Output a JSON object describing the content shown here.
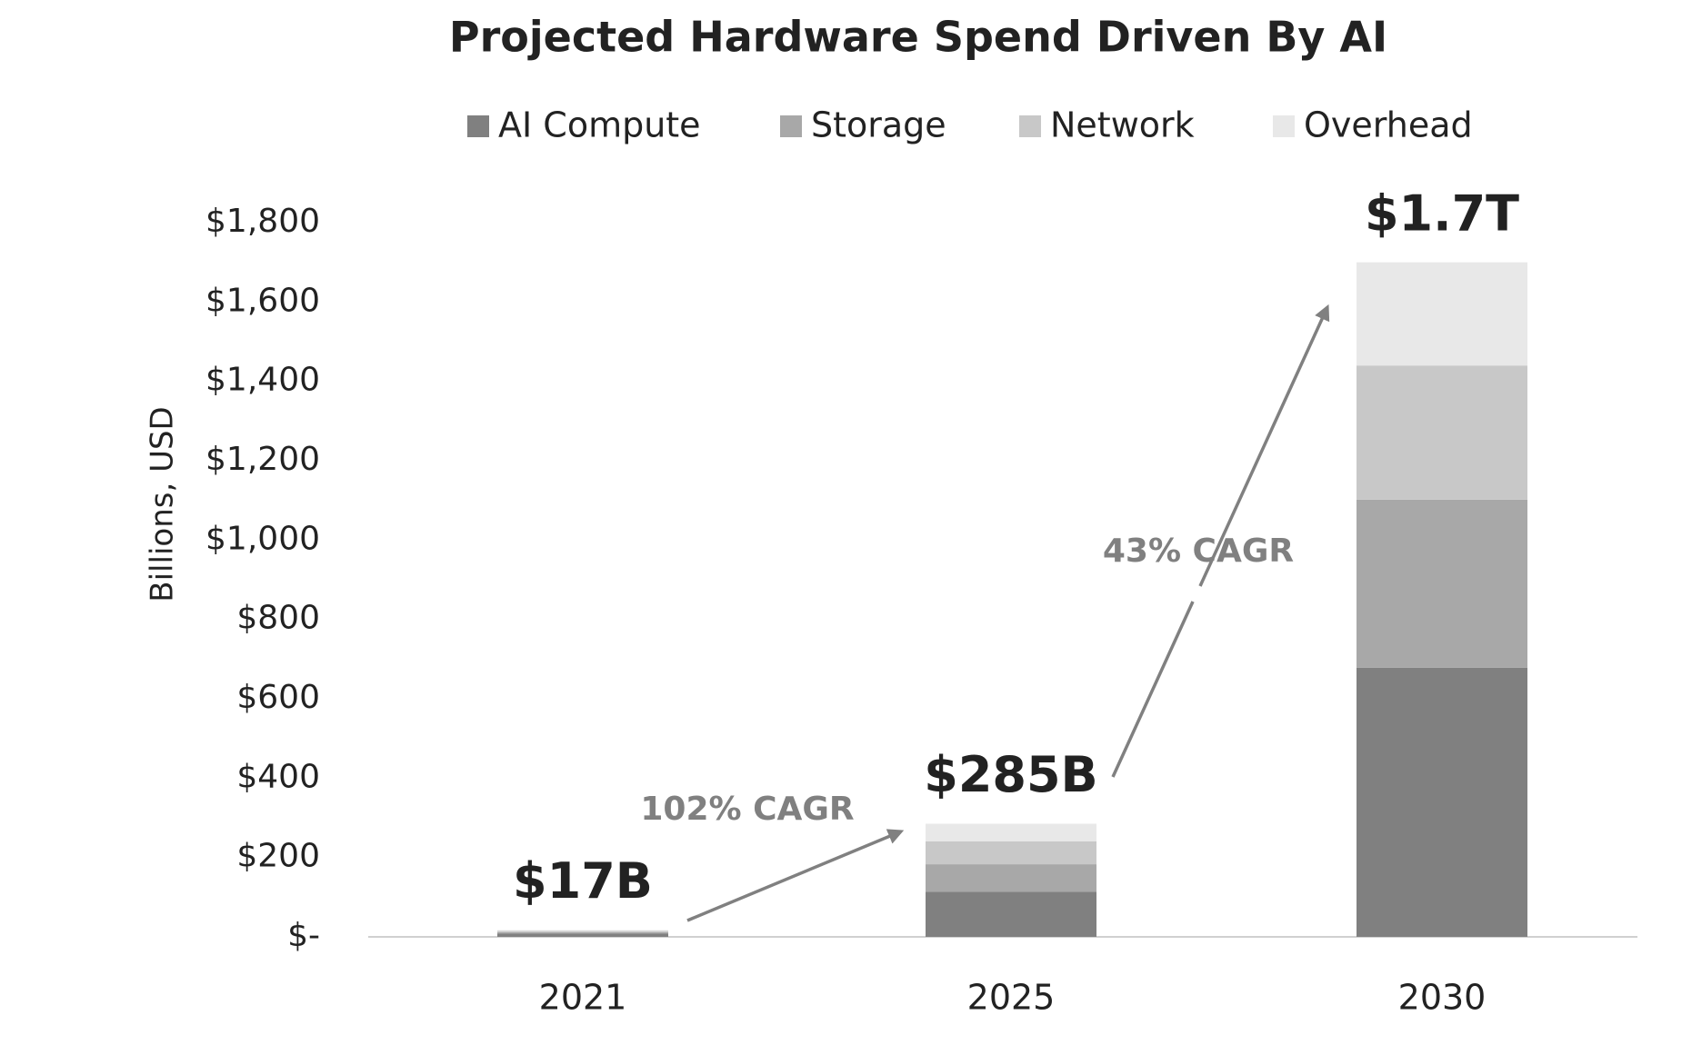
{
  "chart_data": {
    "type": "stacked_bar",
    "title": "Projected Hardware Spend Driven By AI",
    "y_label": "Billions, USD",
    "categories": [
      "2021",
      "2025",
      "2030"
    ],
    "series": [
      {
        "name": "AI Compute",
        "color": "#808080",
        "values": [
          8,
          114,
          678
        ]
      },
      {
        "name": "Storage",
        "color": "#a8a8a8",
        "values": [
          4,
          69,
          424
        ]
      },
      {
        "name": "Network",
        "color": "#c8c8c8",
        "values": [
          3,
          58,
          338
        ]
      },
      {
        "name": "Overhead",
        "color": "#e8e8e8",
        "values": [
          2,
          44,
          260
        ]
      }
    ],
    "totals": {
      "values": [
        17,
        285,
        1700
      ],
      "value_labels": [
        "$17B",
        "$285B",
        "$1.7T"
      ]
    },
    "annotations": [
      "102% CAGR",
      "43% CAGR"
    ],
    "ylim": [
      0,
      1800
    ],
    "yticks": [
      {
        "value": 0,
        "label": "$-"
      },
      {
        "value": 200,
        "label": "$200"
      },
      {
        "value": 400,
        "label": "$400"
      },
      {
        "value": 600,
        "label": "$600"
      },
      {
        "value": 800,
        "label": "$800"
      },
      {
        "value": 1000,
        "label": "$1,000"
      },
      {
        "value": 1200,
        "label": "$1,200"
      },
      {
        "value": 1400,
        "label": "$1,400"
      },
      {
        "value": 1600,
        "label": "$1,600"
      },
      {
        "value": 1800,
        "label": "$1,800"
      }
    ],
    "grid": false,
    "legend": "top"
  }
}
